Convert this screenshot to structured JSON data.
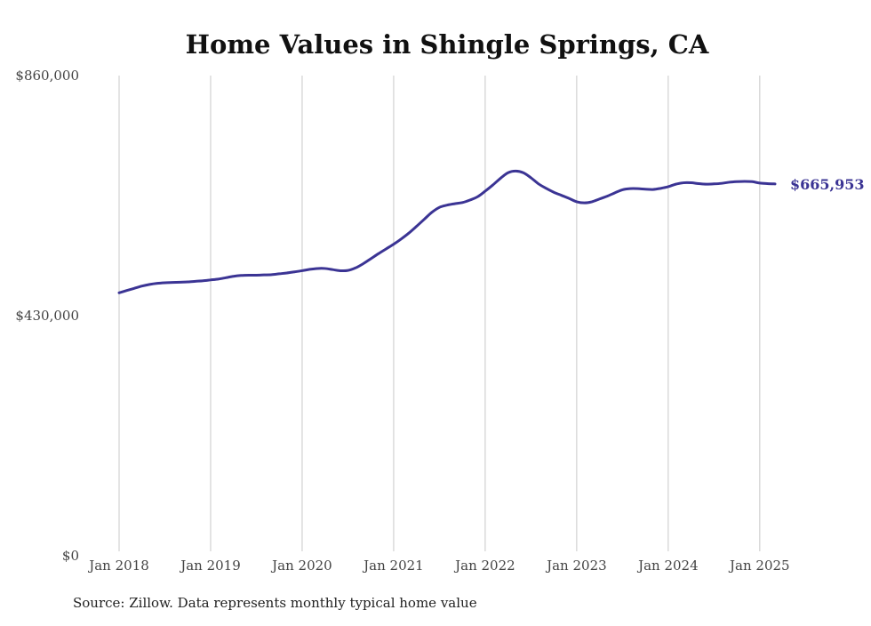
{
  "chart_data": {
    "type": "line",
    "title": "Home Values in Shingle Springs, CA",
    "xlabel": "",
    "ylabel": "",
    "source": "Source: Zillow. Data represents monthly typical home value",
    "ylim": [
      0,
      860000
    ],
    "xlim": [
      "2018-01",
      "2025-03"
    ],
    "grid": {
      "vertical": true,
      "horizontal": false
    },
    "legend": "none",
    "y_ticks": [
      {
        "value": 0,
        "label": "$0"
      },
      {
        "value": 430000,
        "label": "$430,000"
      },
      {
        "value": 860000,
        "label": "$860,000"
      }
    ],
    "x_ticks": [
      {
        "value": "2018-01",
        "label": "Jan 2018"
      },
      {
        "value": "2019-01",
        "label": "Jan 2019"
      },
      {
        "value": "2020-01",
        "label": "Jan 2020"
      },
      {
        "value": "2021-01",
        "label": "Jan 2021"
      },
      {
        "value": "2022-01",
        "label": "Jan 2022"
      },
      {
        "value": "2023-01",
        "label": "Jan 2023"
      },
      {
        "value": "2024-01",
        "label": "Jan 2024"
      },
      {
        "value": "2025-01",
        "label": "Jan 2025"
      }
    ],
    "line_color": "#3b3494",
    "end_label": "$665,953",
    "series": [
      {
        "x": [
          "2018-01",
          "2018-02",
          "2018-03",
          "2018-04",
          "2018-05",
          "2018-06",
          "2018-07",
          "2018-08",
          "2018-09",
          "2018-10",
          "2018-11",
          "2018-12",
          "2019-01",
          "2019-02",
          "2019-03",
          "2019-04",
          "2019-05",
          "2019-06",
          "2019-07",
          "2019-08",
          "2019-09",
          "2019-10",
          "2019-11",
          "2019-12",
          "2020-01",
          "2020-02",
          "2020-03",
          "2020-04",
          "2020-05",
          "2020-06",
          "2020-07",
          "2020-08",
          "2020-09",
          "2020-10",
          "2020-11",
          "2020-12",
          "2021-01",
          "2021-02",
          "2021-03",
          "2021-04",
          "2021-05",
          "2021-06",
          "2021-07",
          "2021-08",
          "2021-09",
          "2021-10",
          "2021-11",
          "2021-12",
          "2022-01",
          "2022-02",
          "2022-03",
          "2022-04",
          "2022-05",
          "2022-06",
          "2022-07",
          "2022-08",
          "2022-09",
          "2022-10",
          "2022-11",
          "2022-12",
          "2023-01",
          "2023-02",
          "2023-03",
          "2023-04",
          "2023-05",
          "2023-06",
          "2023-07",
          "2023-08",
          "2023-09",
          "2023-10",
          "2023-11",
          "2023-12",
          "2024-01",
          "2024-02",
          "2024-03",
          "2024-04",
          "2024-05",
          "2024-06",
          "2024-07",
          "2024-08",
          "2024-09",
          "2024-10",
          "2024-11",
          "2024-12",
          "2025-01",
          "2025-02",
          "2025-03"
        ],
        "values": [
          471000,
          475000,
          479000,
          483000,
          486000,
          488000,
          489000,
          489500,
          490000,
          490500,
          491500,
          492500,
          494000,
          495500,
          498000,
          500500,
          502000,
          502500,
          502500,
          503000,
          503500,
          505000,
          506500,
          508500,
          510500,
          513000,
          514500,
          514500,
          512500,
          510500,
          511000,
          515500,
          523000,
          532000,
          541000,
          549500,
          558000,
          567500,
          578000,
          590000,
          602500,
          615000,
          624000,
          628000,
          630500,
          632500,
          637000,
          643000,
          653000,
          664000,
          676000,
          686000,
          689000,
          686000,
          677000,
          666000,
          658000,
          651000,
          645500,
          640000,
          634000,
          632000,
          634000,
          639000,
          644000,
          650000,
          655500,
          657500,
          657500,
          656500,
          656000,
          658000,
          661000,
          665500,
          668000,
          668000,
          666500,
          665500,
          666000,
          667000,
          669000,
          670000,
          670500,
          670000,
          667500,
          666500,
          665953
        ]
      }
    ]
  }
}
